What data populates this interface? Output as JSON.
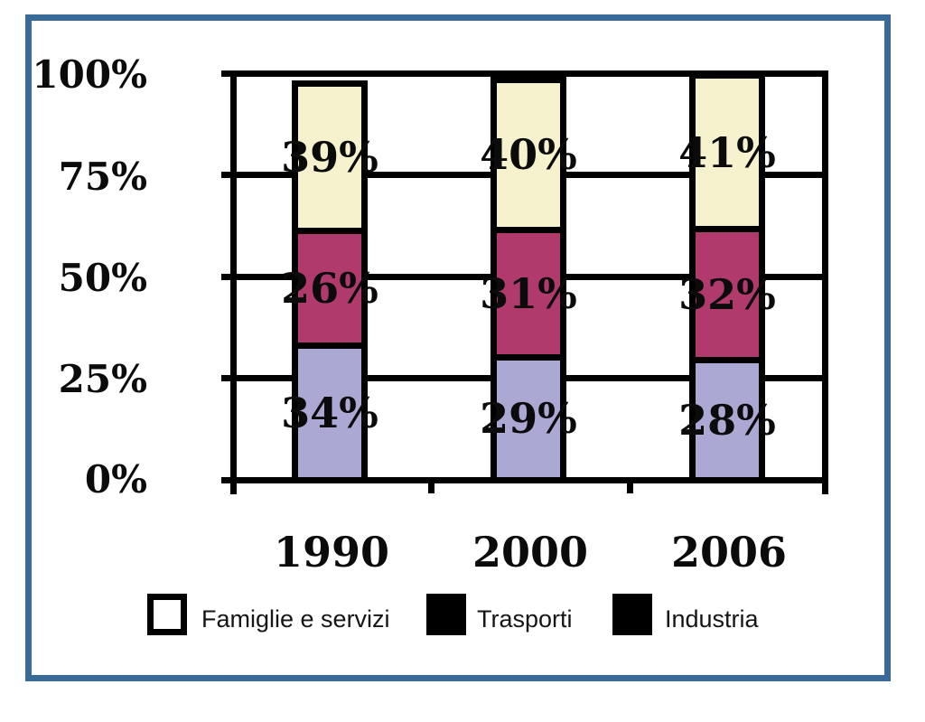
{
  "frame_color": "#3A6A98",
  "chart_data": {
    "type": "bar",
    "stacked": true,
    "title": "",
    "xlabel": "",
    "ylabel": "",
    "ylim": [
      0,
      100
    ],
    "grid": true,
    "categories": [
      "1990",
      "2000",
      "2006"
    ],
    "y_ticks": [
      "100%",
      "75%",
      "50%",
      "25%",
      "0%"
    ],
    "series": [
      {
        "name": "Industria",
        "color": "#ACA8D4",
        "values": [
          34,
          29,
          28
        ],
        "labels": [
          "34%",
          "29%",
          "28%"
        ]
      },
      {
        "name": "Trasporti",
        "color": "#B13A6D",
        "values": [
          26,
          31,
          32
        ],
        "labels": [
          "26%",
          "31%",
          "32%"
        ]
      },
      {
        "name": "Famiglie e servizi",
        "color": "#F7F2CE",
        "values": [
          39,
          40,
          41
        ],
        "labels": [
          "39%",
          "40%",
          "41%"
        ]
      }
    ],
    "legend_position": "bottom",
    "legend": [
      {
        "label": "Famiglie e servizi",
        "swatch_fill": "#FFFFFF"
      },
      {
        "label": "Trasporti",
        "swatch_fill": "#000000"
      },
      {
        "label": "Industria",
        "swatch_fill": "#000000"
      }
    ]
  }
}
